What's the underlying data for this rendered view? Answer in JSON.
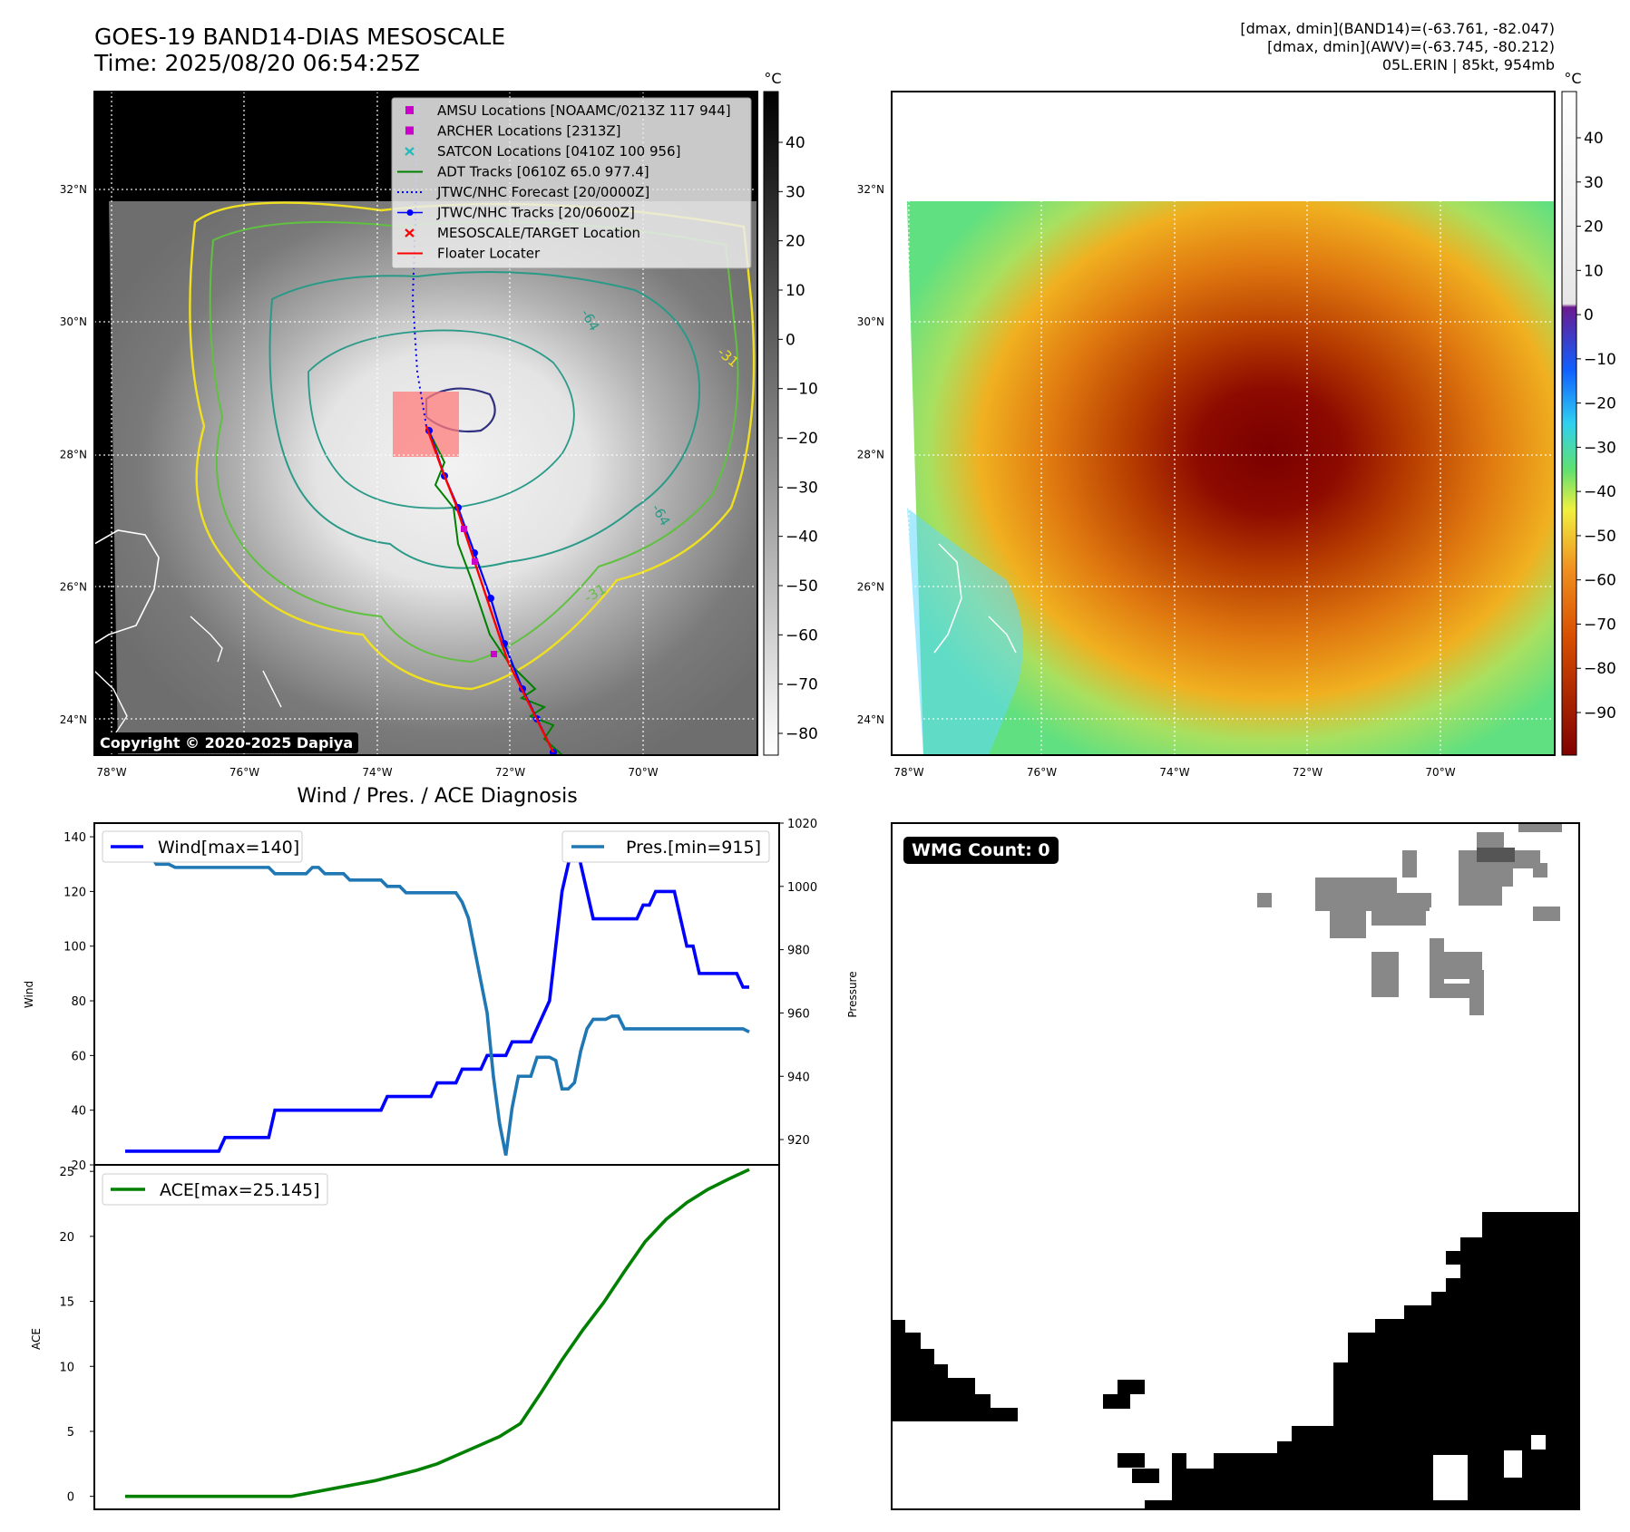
{
  "header": {
    "title_line1": "GOES-19 BAND14-DIAS MESOSCALE",
    "title_line2": "Time: 2025/08/20 06:54:25Z",
    "meta_line1": "[dmax, dmin](BAND14)=(-63.761, -82.047)",
    "meta_line2": "[dmax, dmin](AWV)=(-63.745, -80.212)",
    "meta_line3": "05L.ERIN | 85kt, 954mb"
  },
  "colors": {
    "wind": "#0000ff",
    "pressure": "#1f77b4",
    "ace": "#008000",
    "jtwc": "#0000ff",
    "adt": "#008000",
    "floater": "#ff0000",
    "archer": "#cc00cc",
    "satcon": "#22bbbb",
    "contour_yellow": "#f0e020",
    "contour_green": "#60c040",
    "contour_teal": "#2a9a88",
    "contour_navy": "#303080"
  },
  "map_panel": {
    "unit": "°C",
    "lon_labels": [
      "78°W",
      "76°W",
      "74°W",
      "72°W",
      "70°W"
    ],
    "lat_labels": [
      "32°N",
      "30°N",
      "28°N",
      "26°N",
      "24°N"
    ],
    "colorbar_ticks": [
      "40",
      "30",
      "20",
      "10",
      "0",
      "−10",
      "−20",
      "−30",
      "−40",
      "−50",
      "−60",
      "−70",
      "−80"
    ],
    "contour_labels": [
      "-64",
      "-64",
      "-31",
      "-31"
    ],
    "copyright": "Copyright © 2020-2025 Dapiya",
    "legend": [
      {
        "label": "AMSU Locations [NOAAMC/0213Z 117 944]",
        "marker": "square",
        "color": "#cc00cc"
      },
      {
        "label": "ARCHER Locations [2313Z]",
        "marker": "square",
        "color": "#cc00cc"
      },
      {
        "label": "SATCON Locations [0410Z 100 956]",
        "marker": "x",
        "color": "#22bbbb"
      },
      {
        "label": "ADT Tracks [0610Z 65.0 977.4]",
        "marker": "line",
        "color": "#008000"
      },
      {
        "label": "JTWC/NHC Forecast [20/0000Z]",
        "marker": "dotted",
        "color": "#0000ff"
      },
      {
        "label": "JTWC/NHC Tracks [20/0600Z]",
        "marker": "line-dot",
        "color": "#0000ff"
      },
      {
        "label": "MESOSCALE/TARGET Location",
        "marker": "x",
        "color": "#ff0000"
      },
      {
        "label": "Floater Locater",
        "marker": "line",
        "color": "#ff0000"
      }
    ]
  },
  "awv_panel": {
    "unit": "°C",
    "lon_labels": [
      "78°W",
      "76°W",
      "74°W",
      "72°W",
      "70°W"
    ],
    "lat_labels": [
      "32°N",
      "30°N",
      "28°N",
      "26°N",
      "24°N"
    ],
    "colorbar_ticks": [
      "40",
      "30",
      "20",
      "10",
      "0",
      "−10",
      "−20",
      "−30",
      "−40",
      "−50",
      "−60",
      "−70",
      "−80",
      "−90"
    ]
  },
  "wmg_panel": {
    "badge": "WMG Count: 0"
  },
  "chart_data": [
    {
      "type": "line",
      "title": "Wind / Pres. / ACE Diagnosis",
      "ylabel": "Wind",
      "y2label": "Pressure",
      "ylim": [
        20,
        145
      ],
      "y2lim": [
        912,
        1020
      ],
      "yticks": [
        20,
        40,
        60,
        80,
        100,
        120,
        140
      ],
      "y2ticks": [
        920,
        940,
        960,
        980,
        1000,
        1020
      ],
      "legend": [
        "Wind[max=140]",
        "Pres.[min=915]"
      ],
      "x": [
        0,
        1,
        2,
        3,
        4,
        5,
        6,
        7,
        8,
        9,
        10,
        11,
        12,
        13,
        14,
        15,
        16,
        17,
        18,
        19,
        20,
        21,
        22,
        23,
        24,
        25,
        26,
        27,
        28,
        29,
        30,
        31,
        32,
        33,
        34,
        35,
        36,
        37,
        38,
        39,
        40,
        41,
        42,
        43,
        44,
        45,
        46,
        47,
        48,
        49,
        50,
        51,
        52,
        53,
        54,
        55,
        56,
        57,
        58,
        59,
        60,
        61,
        62,
        63,
        64,
        65,
        66,
        67,
        68,
        69,
        70,
        71,
        72,
        73,
        74,
        75,
        76,
        77,
        78,
        79,
        80,
        81,
        82,
        83,
        84,
        85,
        86,
        87,
        88,
        89,
        90,
        91,
        92,
        93,
        94,
        95,
        96,
        97,
        98,
        99,
        100
      ],
      "series": [
        {
          "name": "Wind",
          "axis": "left",
          "values": [
            25,
            25,
            25,
            25,
            25,
            25,
            25,
            25,
            25,
            25,
            25,
            25,
            25,
            25,
            25,
            25,
            30,
            30,
            30,
            30,
            30,
            30,
            30,
            30,
            40,
            40,
            40,
            40,
            40,
            40,
            40,
            40,
            40,
            40,
            40,
            40,
            40,
            40,
            40,
            40,
            40,
            40,
            45,
            45,
            45,
            45,
            45,
            45,
            45,
            45,
            50,
            50,
            50,
            50,
            55,
            55,
            55,
            55,
            60,
            60,
            60,
            60,
            65,
            65,
            65,
            65,
            70,
            75,
            80,
            100,
            120,
            130,
            140,
            130,
            120,
            110,
            110,
            110,
            110,
            110,
            110,
            110,
            110,
            115,
            115,
            120,
            120,
            120,
            120,
            110,
            100,
            100,
            90,
            90,
            90,
            90,
            90,
            90,
            90,
            85,
            85
          ]
        },
        {
          "name": "Pres.",
          "axis": "right",
          "values": [
            1015,
            1015,
            1015,
            1010,
            1010,
            1007,
            1007,
            1007,
            1006,
            1006,
            1006,
            1006,
            1006,
            1006,
            1006,
            1006,
            1006,
            1006,
            1006,
            1006,
            1006,
            1006,
            1006,
            1006,
            1004,
            1004,
            1004,
            1004,
            1004,
            1004,
            1006,
            1006,
            1004,
            1004,
            1004,
            1004,
            1002,
            1002,
            1002,
            1002,
            1002,
            1002,
            1000,
            1000,
            1000,
            998,
            998,
            998,
            998,
            998,
            998,
            998,
            998,
            998,
            995,
            990,
            980,
            970,
            960,
            940,
            925,
            915,
            930,
            940,
            940,
            940,
            946,
            946,
            946,
            945,
            936,
            936,
            938,
            948,
            955,
            958,
            958,
            958,
            959,
            959,
            955,
            955,
            955,
            955,
            955,
            955,
            955,
            955,
            955,
            955,
            955,
            955,
            955,
            955,
            955,
            955,
            955,
            955,
            955,
            955,
            954
          ]
        }
      ]
    },
    {
      "type": "line",
      "ylabel": "ACE",
      "ylim": [
        -1,
        25.5
      ],
      "yticks": [
        0,
        5,
        10,
        15,
        20,
        25
      ],
      "legend": [
        "ACE[max=25.145]"
      ],
      "x": [
        0,
        1,
        2,
        3,
        4,
        5,
        6,
        7,
        8,
        9,
        10,
        11,
        12,
        13,
        14,
        15,
        16,
        17,
        18,
        19,
        20,
        21,
        22,
        23,
        24,
        25,
        26,
        27,
        28,
        29,
        30
      ],
      "series": [
        {
          "name": "ACE",
          "values": [
            0,
            0,
            0,
            0,
            0,
            0,
            0,
            0,
            0,
            0.3,
            0.6,
            0.9,
            1.2,
            1.6,
            2.0,
            2.5,
            3.2,
            3.9,
            4.6,
            5.6,
            8.0,
            10.5,
            12.8,
            14.9,
            17.3,
            19.6,
            21.3,
            22.6,
            23.6,
            24.4,
            25.145
          ]
        }
      ]
    }
  ]
}
